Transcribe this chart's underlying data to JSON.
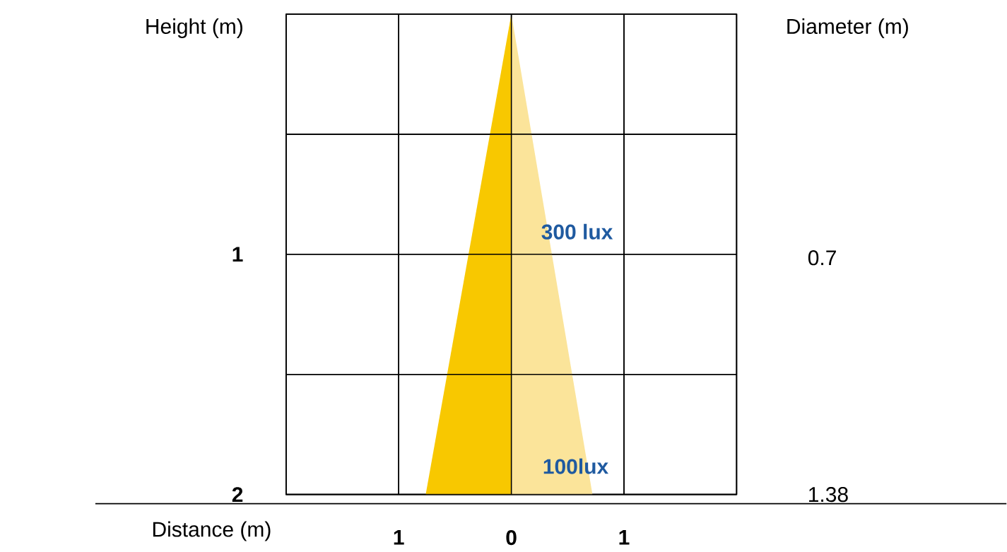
{
  "chart_data": {
    "type": "area",
    "xlabel": "Distance (m)",
    "ylabel": "Height (m)",
    "y2label": "Diameter (m)",
    "xlim": [
      -2,
      2
    ],
    "xticks": [
      {
        "value": -2,
        "label": null
      },
      {
        "value": -1,
        "label": "1"
      },
      {
        "value": 0,
        "label": "0"
      },
      {
        "value": 1,
        "label": "1"
      },
      {
        "value": 2,
        "label": null
      }
    ],
    "ylim": [
      2,
      0
    ],
    "yticks": [
      {
        "value": 0,
        "label": null
      },
      {
        "value": 0.5,
        "label": null
      },
      1,
      {
        "value": 1.5,
        "label": null
      },
      2
    ],
    "y2lim": [
      1.38,
      0
    ],
    "y2ticks": [
      0.7,
      1.38
    ],
    "grid": true,
    "series": [
      {
        "color": "#f8c800",
        "x": [
          0,
          -0.76,
          0
        ],
        "values": [
          0,
          2,
          2
        ]
      },
      {
        "color": "#fbe49a",
        "x": [
          0,
          0.72,
          0
        ],
        "values": [
          0,
          2,
          2
        ]
      }
    ],
    "annotations": [
      "300 lux",
      "100lux"
    ]
  }
}
